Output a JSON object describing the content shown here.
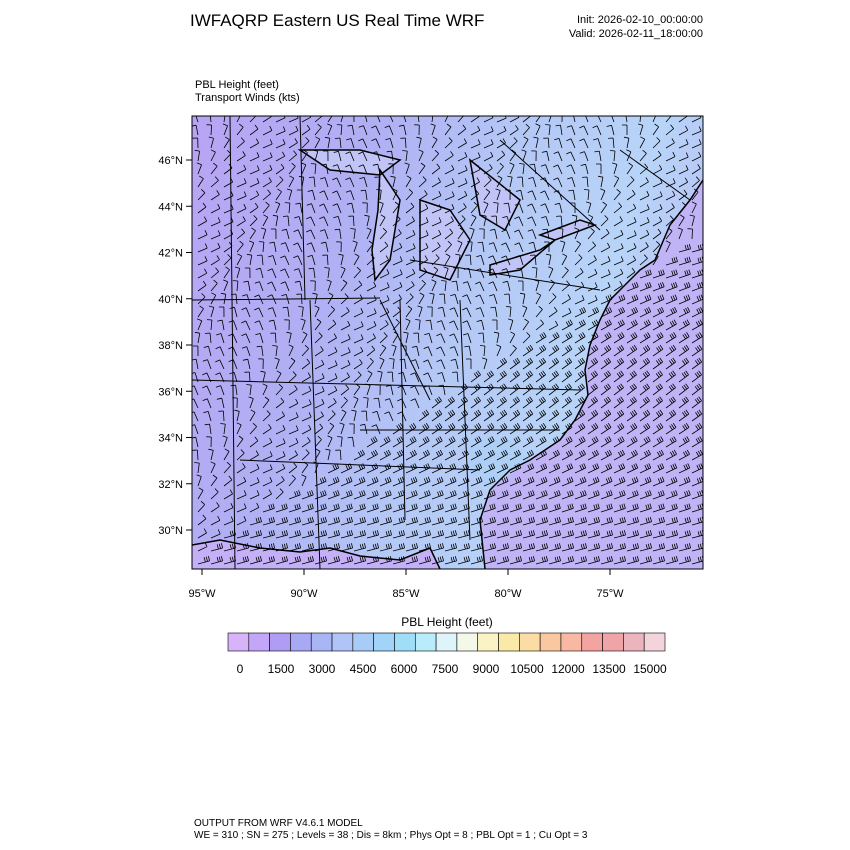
{
  "header": {
    "title": "IWFAQRP Eastern US Real Time WRF",
    "init": "Init: 2026-02-10_00:00:00",
    "valid": "Valid: 2026-02-11_18:00:00"
  },
  "plot": {
    "field_label": "PBL Height   (feet)",
    "wind_label": "Transport Winds   (kts)",
    "lat_labels": [
      "46°N",
      "44°N",
      "42°N",
      "40°N",
      "38°N",
      "36°N",
      "34°N",
      "32°N",
      "30°N"
    ],
    "lon_labels": [
      "95°W",
      "90°W",
      "85°W",
      "80°W",
      "75°W"
    ]
  },
  "colorbar": {
    "title": "PBL Height  (feet)",
    "labels": [
      0,
      1500,
      3000,
      4500,
      6000,
      7500,
      9000,
      10500,
      12000,
      13500,
      15000
    ],
    "colors": [
      "#d7b4fa",
      "#c3a6f7",
      "#b09cf5",
      "#a8a8f5",
      "#a8b6f5",
      "#b0c4f7",
      "#a8ccf7",
      "#a0d4f8",
      "#a0def8",
      "#b8ecfa",
      "#dcf4fa",
      "#f4f8e8",
      "#faf4c4",
      "#faeaa8",
      "#fadca4",
      "#fac8a0",
      "#f8b8a4",
      "#f4a4a0",
      "#f0a4a8",
      "#ecb4bc",
      "#f4d4dc"
    ]
  },
  "footer": {
    "line1": "OUTPUT FROM WRF V4.6.1 MODEL",
    "line2": "WE = 310 ; SN = 275 ; Levels = 38 ; Dis = 8km ; Phys Opt = 8 ; PBL Opt = 1 ; Cu Opt = 3"
  }
}
